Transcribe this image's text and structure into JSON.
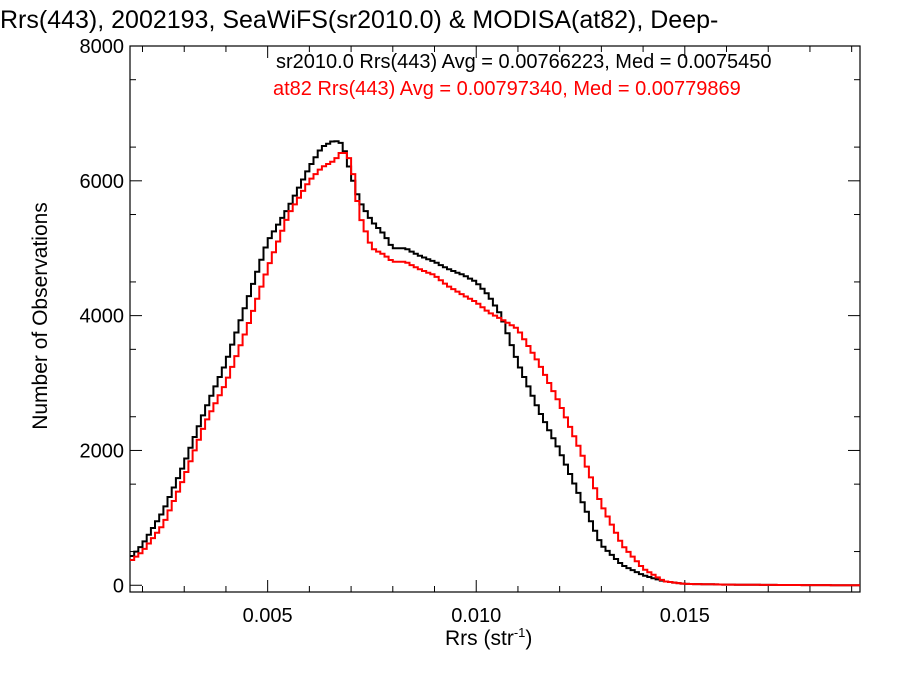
{
  "chart_data": {
    "type": "line",
    "title": "Rrs(443), 2002193, SeaWiFS(sr2010.0) & MODISA(at82), Deep-",
    "xlabel": "Rrs (str",
    "xlabel_sup": "-1",
    "xlabel_end": ")",
    "ylabel": "Number of Observations",
    "xlim": [
      0.0017,
      0.0192
    ],
    "ylim": [
      -100,
      8000
    ],
    "x_ticks": [
      0.005,
      0.01,
      0.015
    ],
    "x_tick_labels": [
      "0.005",
      "0.010",
      "0.015"
    ],
    "y_ticks": [
      0,
      2000,
      4000,
      6000,
      8000
    ],
    "y_tick_labels": [
      "0",
      "2000",
      "4000",
      "6000",
      "8000"
    ],
    "annotations": [
      {
        "text": "sr2010.0 Rrs(443) Avg = 0.00766223, Med = 0.0075450",
        "color": "#000000"
      },
      {
        "text": "at82 Rrs(443) Avg = 0.00797340, Med = 0.00779869",
        "color": "#ff0000"
      }
    ],
    "series": [
      {
        "color": "#000000",
        "x": [
          0.0017,
          0.002,
          0.0025,
          0.003,
          0.0035,
          0.004,
          0.0045,
          0.005,
          0.0055,
          0.006,
          0.0063,
          0.0066,
          0.0068,
          0.007,
          0.0072,
          0.0075,
          0.0078,
          0.008,
          0.0083,
          0.0086,
          0.009,
          0.0093,
          0.0097,
          0.01,
          0.0103,
          0.0106,
          0.011,
          0.0115,
          0.012,
          0.0125,
          0.013,
          0.0135,
          0.014,
          0.0145,
          0.015,
          0.016,
          0.017,
          0.0192
        ],
        "y": [
          400,
          600,
          1100,
          1800,
          2600,
          3300,
          4200,
          5100,
          5600,
          6200,
          6500,
          6600,
          6550,
          6100,
          5700,
          5400,
          5200,
          5000,
          5000,
          4900,
          4800,
          4700,
          4600,
          4500,
          4300,
          4000,
          3300,
          2600,
          2000,
          1300,
          600,
          300,
          150,
          60,
          20,
          10,
          5,
          0
        ]
      },
      {
        "color": "#ff0000",
        "x": [
          0.0017,
          0.002,
          0.0025,
          0.003,
          0.0035,
          0.004,
          0.0045,
          0.005,
          0.0055,
          0.006,
          0.0063,
          0.0066,
          0.0068,
          0.007,
          0.0072,
          0.0075,
          0.0078,
          0.008,
          0.0083,
          0.0086,
          0.009,
          0.0093,
          0.0097,
          0.01,
          0.0103,
          0.0106,
          0.011,
          0.0115,
          0.012,
          0.0125,
          0.013,
          0.0135,
          0.014,
          0.0145,
          0.015,
          0.016,
          0.017,
          0.0192
        ],
        "y": [
          350,
          500,
          900,
          1600,
          2400,
          3000,
          3800,
          4700,
          5500,
          6000,
          6200,
          6300,
          6450,
          6300,
          5500,
          5000,
          4900,
          4800,
          4800,
          4700,
          4600,
          4450,
          4300,
          4200,
          4050,
          3950,
          3800,
          3300,
          2700,
          2000,
          1200,
          600,
          250,
          60,
          20,
          10,
          5,
          0
        ]
      }
    ]
  }
}
